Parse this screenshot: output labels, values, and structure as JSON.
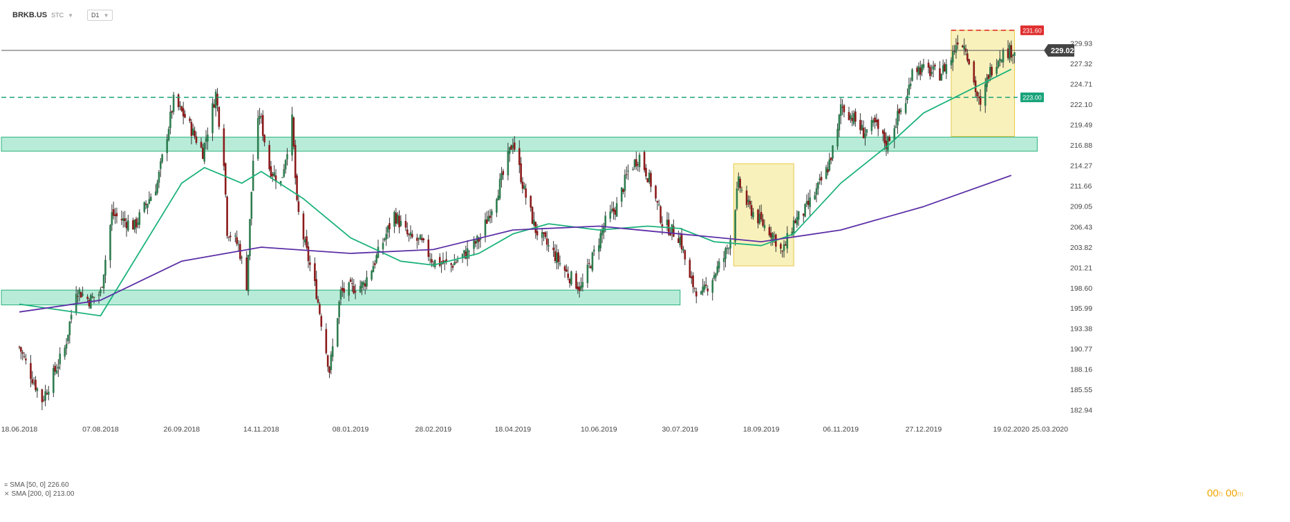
{
  "header": {
    "symbol": "BRKB.US",
    "market": "STC",
    "timeframe": "D1"
  },
  "legend": [
    {
      "label": "SMA [50, 0]",
      "value": "226.60"
    },
    {
      "label": "SMA [200, 0]",
      "value": "213.00"
    }
  ],
  "countdown": {
    "hours": "00",
    "h_unit": "h",
    "minutes": "00",
    "m_unit": "m"
  },
  "colors": {
    "up": "#2e7d4f",
    "down": "#8b1a1a",
    "sma50": "#1ab27a",
    "sma200": "#5b2ea6",
    "zone_fill": "#b8ecd9",
    "zone_stroke": "#27b07a",
    "box_fill": "#f7eeb0",
    "box_stroke": "#e6c84a",
    "resistance": "#e03030",
    "support": "#1aa37a"
  },
  "chart_data": {
    "type": "candlestick",
    "instrument": "BRKB.US",
    "timeframe": "D1",
    "ylim": [
      181.5,
      233.0
    ],
    "y_ticks": [
      "182.94",
      "185.55",
      "188.16",
      "190.77",
      "193.38",
      "195.99",
      "198.60",
      "201.21",
      "203.82",
      "206.43",
      "209.05",
      "211.66",
      "214.27",
      "216.88",
      "219.49",
      "222.10",
      "224.71",
      "227.32",
      "229.93"
    ],
    "x_ticks": [
      "18.06.2018",
      "07.08.2018",
      "26.09.2018",
      "14.11.2018",
      "08.01.2019",
      "28.02.2019",
      "18.04.2019",
      "10.06.2019",
      "30.07.2019",
      "18.09.2019",
      "06.11.2019",
      "27.12.2019",
      "19.02.2020",
      "25.03.2020"
    ],
    "price_path": [
      [
        "18.06.2018",
        191.0
      ],
      [
        "25.06.2018",
        187.5
      ],
      [
        "02.07.2018",
        184.2
      ],
      [
        "16.07.2018",
        190.8
      ],
      [
        "23.07.2018",
        198.5
      ],
      [
        "31.07.2018",
        197.0
      ],
      [
        "07.08.2018",
        198.0
      ],
      [
        "14.08.2018",
        208.0
      ],
      [
        "28.08.2018",
        206.5
      ],
      [
        "11.09.2018",
        212.0
      ],
      [
        "21.09.2018",
        222.5
      ],
      [
        "28.09.2018",
        220.5
      ],
      [
        "09.10.2018",
        216.0
      ],
      [
        "17.10.2018",
        223.5
      ],
      [
        "22.10.2018",
        215.0
      ],
      [
        "24.10.2018",
        206.0
      ],
      [
        "31.10.2018",
        204.0
      ],
      [
        "05.11.2018",
        199.0
      ],
      [
        "09.11.2018",
        215.0
      ],
      [
        "13.11.2018",
        221.0
      ],
      [
        "19.11.2018",
        214.0
      ],
      [
        "26.11.2018",
        212.0
      ],
      [
        "03.12.2018",
        220.0
      ],
      [
        "06.12.2018",
        209.0
      ],
      [
        "11.12.2018",
        204.0
      ],
      [
        "18.12.2018",
        198.0
      ],
      [
        "26.12.2018",
        188.0
      ],
      [
        "02.01.2019",
        198.0
      ],
      [
        "08.01.2019",
        198.5
      ],
      [
        "16.01.2019",
        199.0
      ],
      [
        "23.01.2019",
        202.0
      ],
      [
        "04.02.2019",
        208.0
      ],
      [
        "13.02.2019",
        205.0
      ],
      [
        "20.02.2019",
        204.5
      ],
      [
        "28.02.2019",
        202.0
      ],
      [
        "11.03.2019",
        201.5
      ],
      [
        "20.03.2019",
        203.0
      ],
      [
        "29.03.2019",
        205.0
      ],
      [
        "05.04.2019",
        209.0
      ],
      [
        "12.04.2019",
        213.0
      ],
      [
        "18.04.2019",
        217.5
      ],
      [
        "25.04.2019",
        211.0
      ],
      [
        "02.05.2019",
        206.0
      ],
      [
        "13.05.2019",
        203.0
      ],
      [
        "21.05.2019",
        200.5
      ],
      [
        "30.05.2019",
        198.5
      ],
      [
        "07.06.2019",
        203.0
      ],
      [
        "14.06.2019",
        207.0
      ],
      [
        "21.06.2019",
        209.0
      ],
      [
        "28.06.2019",
        213.5
      ],
      [
        "05.07.2019",
        215.5
      ],
      [
        "12.07.2019",
        212.0
      ],
      [
        "19.07.2019",
        207.0
      ],
      [
        "30.07.2019",
        205.0
      ],
      [
        "05.08.2019",
        199.5
      ],
      [
        "12.08.2019",
        197.5
      ],
      [
        "19.08.2019",
        200.0
      ],
      [
        "26.08.2019",
        202.5
      ],
      [
        "30.08.2019",
        205.0
      ],
      [
        "04.09.2019",
        212.0
      ],
      [
        "10.09.2019",
        209.0
      ],
      [
        "18.09.2019",
        207.0
      ],
      [
        "25.09.2019",
        205.5
      ],
      [
        "01.10.2019",
        203.0
      ],
      [
        "08.10.2019",
        207.0
      ],
      [
        "15.10.2019",
        208.5
      ],
      [
        "22.10.2019",
        211.0
      ],
      [
        "29.10.2019",
        214.0
      ],
      [
        "04.11.2019",
        218.5
      ],
      [
        "06.11.2019",
        222.0
      ],
      [
        "13.11.2019",
        220.5
      ],
      [
        "20.11.2019",
        218.5
      ],
      [
        "27.11.2019",
        219.5
      ],
      [
        "04.12.2019",
        217.0
      ],
      [
        "11.12.2019",
        220.5
      ],
      [
        "17.12.2019",
        223.0
      ],
      [
        "20.12.2019",
        227.0
      ],
      [
        "27.12.2019",
        226.5
      ],
      [
        "06.01.2020",
        226.0
      ],
      [
        "13.01.2020",
        228.0
      ],
      [
        "17.01.2020",
        230.5
      ],
      [
        "22.01.2020",
        229.5
      ],
      [
        "28.01.2020",
        224.0
      ],
      [
        "31.01.2020",
        221.5
      ],
      [
        "05.02.2020",
        226.0
      ],
      [
        "12.02.2020",
        228.5
      ],
      [
        "19.02.2020",
        229.0
      ],
      [
        "21.02.2020",
        229.02
      ]
    ],
    "series": [
      {
        "name": "SMA [50, 0]",
        "last": 226.6,
        "values": [
          [
            "18.06.2018",
            196.5
          ],
          [
            "07.08.2018",
            195.0
          ],
          [
            "26.09.2018",
            212.0
          ],
          [
            "10.10.2018",
            214.0
          ],
          [
            "02.11.2018",
            212.0
          ],
          [
            "14.11.2018",
            213.5
          ],
          [
            "10.12.2018",
            210.0
          ],
          [
            "08.01.2019",
            205.0
          ],
          [
            "08.02.2019",
            202.0
          ],
          [
            "28.02.2019",
            201.5
          ],
          [
            "28.03.2019",
            203.0
          ],
          [
            "18.04.2019",
            205.5
          ],
          [
            "10.05.2019",
            206.8
          ],
          [
            "10.06.2019",
            206.0
          ],
          [
            "10.07.2019",
            206.5
          ],
          [
            "30.07.2019",
            206.2
          ],
          [
            "20.08.2019",
            204.5
          ],
          [
            "18.09.2019",
            204.0
          ],
          [
            "08.10.2019",
            205.5
          ],
          [
            "06.11.2019",
            212.0
          ],
          [
            "06.12.2019",
            217.0
          ],
          [
            "27.12.2019",
            221.0
          ],
          [
            "19.02.2020",
            226.6
          ]
        ]
      },
      {
        "name": "SMA [200, 0]",
        "last": 213.0,
        "values": [
          [
            "18.06.2018",
            195.5
          ],
          [
            "07.08.2018",
            197.0
          ],
          [
            "26.09.2018",
            202.0
          ],
          [
            "14.11.2018",
            203.8
          ],
          [
            "08.01.2019",
            203.0
          ],
          [
            "28.02.2019",
            203.5
          ],
          [
            "18.04.2019",
            206.0
          ],
          [
            "10.06.2019",
            206.5
          ],
          [
            "30.07.2019",
            205.5
          ],
          [
            "18.09.2019",
            204.5
          ],
          [
            "06.11.2019",
            206.0
          ],
          [
            "27.12.2019",
            209.0
          ],
          [
            "19.02.2020",
            213.0
          ]
        ]
      }
    ],
    "levels": [
      {
        "label": "231.60",
        "value": 231.6,
        "style": "dashed",
        "role": "resistance"
      },
      {
        "label": "223.00",
        "value": 223.0,
        "style": "dashed",
        "role": "support"
      },
      {
        "label": "229.02",
        "value": 229.02,
        "style": "solid",
        "role": "last-price"
      }
    ],
    "zones": [
      {
        "from": "18.06.2018",
        "to": "30.07.2019",
        "ymin": 196.4,
        "ymax": 198.3
      },
      {
        "from": "18.06.2018",
        "to": "06.03.2020",
        "ymin": 216.1,
        "ymax": 217.9
      }
    ],
    "highlight_boxes": [
      {
        "from": "01.09.2019",
        "to": "08.10.2019",
        "ymin": 201.4,
        "ymax": 214.5
      },
      {
        "from": "13.01.2020",
        "to": "21.02.2020",
        "ymin": 218.0,
        "ymax": 231.6
      }
    ],
    "legend_placement": "bottom-left",
    "grid": false
  }
}
